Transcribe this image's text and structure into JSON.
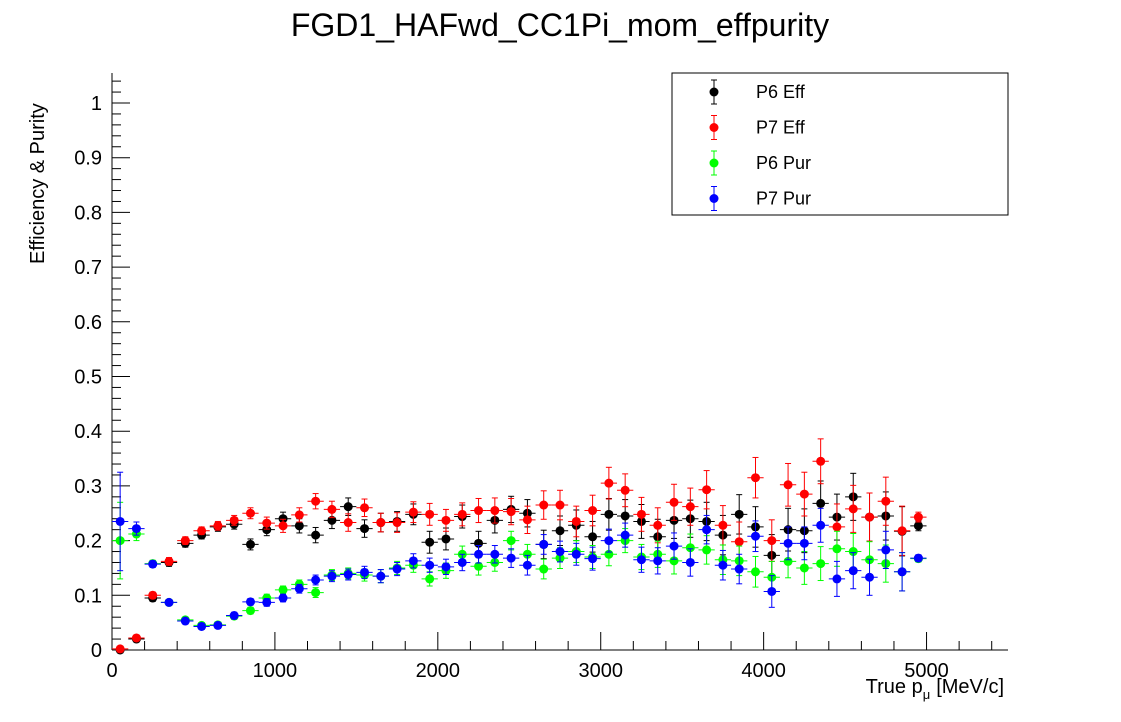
{
  "chart_data": {
    "type": "scatter",
    "title": "FGD1_HAFwd_CC1Pi_mom_effpurity",
    "xlabel": "True p",
    "xlabel_sub": "μ",
    "xlabel_unit": "[MeV/c]",
    "ylabel": "Efficiency & Purity",
    "xlim": [
      0,
      5500
    ],
    "ylim": [
      0,
      1.05
    ],
    "x_ticks": [
      0,
      1000,
      2000,
      3000,
      4000,
      5000
    ],
    "x_tick_labels": [
      "0",
      "1000",
      "2000",
      "3000",
      "4000",
      "5000"
    ],
    "y_ticks": [
      0,
      0.1,
      0.2,
      0.3,
      0.4,
      0.5,
      0.6,
      0.7,
      0.8,
      0.9,
      1
    ],
    "y_tick_labels": [
      "0",
      "0.1",
      "0.2",
      "0.3",
      "0.4",
      "0.5",
      "0.6",
      "0.7",
      "0.8",
      "0.9",
      "1"
    ],
    "x": [
      50,
      150,
      250,
      350,
      450,
      550,
      650,
      750,
      850,
      950,
      1050,
      1150,
      1250,
      1350,
      1450,
      1550,
      1650,
      1750,
      1850,
      1950,
      2050,
      2150,
      2250,
      2350,
      2450,
      2550,
      2650,
      2750,
      2850,
      2950,
      3050,
      3150,
      3250,
      3350,
      3450,
      3550,
      3650,
      3750,
      3850,
      3950,
      4050,
      4150,
      4250,
      4350,
      4450,
      4550,
      4650,
      4750,
      4850,
      4950
    ],
    "x_error": 50,
    "legend_position": "top-right",
    "grid": false,
    "series": [
      {
        "name": "P6 Eff",
        "color": "#000000",
        "values": [
          0.0,
          0.02,
          0.095,
          0.16,
          0.195,
          0.21,
          0.225,
          0.23,
          0.193,
          0.22,
          0.24,
          0.227,
          0.21,
          0.237,
          0.262,
          0.222,
          0.233,
          0.235,
          0.248,
          0.197,
          0.203,
          0.244,
          0.195,
          0.237,
          0.257,
          0.25,
          0.193,
          0.218,
          0.228,
          0.207,
          0.248,
          0.245,
          0.235,
          0.207,
          0.237,
          0.24,
          0.235,
          0.21,
          0.248,
          0.225,
          0.173,
          0.22,
          0.218,
          0.268,
          0.243,
          0.28,
          0.243,
          0.245,
          0.217,
          0.227
        ],
        "errors": [
          0.003,
          0.005,
          0.006,
          0.007,
          0.007,
          0.007,
          0.008,
          0.009,
          0.01,
          0.011,
          0.012,
          0.013,
          0.014,
          0.015,
          0.016,
          0.016,
          0.017,
          0.018,
          0.019,
          0.02,
          0.02,
          0.021,
          0.022,
          0.023,
          0.024,
          0.025,
          0.026,
          0.027,
          0.028,
          0.028,
          0.029,
          0.03,
          0.031,
          0.032,
          0.033,
          0.034,
          0.035,
          0.036,
          0.036,
          0.037,
          0.038,
          0.039,
          0.04,
          0.041,
          0.042,
          0.043,
          0.044,
          0.044,
          0.045,
          0.009
        ]
      },
      {
        "name": "P7 Eff",
        "color": "#ff0000",
        "values": [
          0.002,
          0.022,
          0.1,
          0.162,
          0.2,
          0.218,
          0.227,
          0.237,
          0.25,
          0.232,
          0.227,
          0.247,
          0.272,
          0.257,
          0.233,
          0.26,
          0.233,
          0.233,
          0.252,
          0.248,
          0.237,
          0.248,
          0.255,
          0.255,
          0.253,
          0.238,
          0.265,
          0.265,
          0.235,
          0.255,
          0.305,
          0.292,
          0.248,
          0.228,
          0.27,
          0.262,
          0.293,
          0.228,
          0.198,
          0.315,
          0.2,
          0.302,
          0.285,
          0.345,
          0.225,
          0.258,
          0.243,
          0.272,
          0.218,
          0.243
        ],
        "errors": [
          0.003,
          0.005,
          0.006,
          0.007,
          0.007,
          0.007,
          0.008,
          0.009,
          0.01,
          0.011,
          0.012,
          0.013,
          0.014,
          0.015,
          0.016,
          0.016,
          0.017,
          0.018,
          0.019,
          0.02,
          0.02,
          0.021,
          0.022,
          0.023,
          0.024,
          0.025,
          0.026,
          0.027,
          0.028,
          0.028,
          0.029,
          0.03,
          0.031,
          0.032,
          0.033,
          0.034,
          0.035,
          0.036,
          0.036,
          0.037,
          0.038,
          0.039,
          0.04,
          0.041,
          0.042,
          0.043,
          0.044,
          0.044,
          0.045,
          0.009
        ]
      },
      {
        "name": "P6 Pur",
        "color": "#00ff00",
        "values": [
          0.2,
          0.212,
          0.158,
          0.087,
          0.055,
          0.045,
          0.046,
          0.062,
          0.072,
          0.095,
          0.11,
          0.12,
          0.105,
          0.137,
          0.14,
          0.137,
          0.135,
          0.15,
          0.155,
          0.13,
          0.145,
          0.175,
          0.153,
          0.16,
          0.2,
          0.175,
          0.148,
          0.168,
          0.18,
          0.17,
          0.175,
          0.2,
          0.17,
          0.175,
          0.163,
          0.187,
          0.183,
          0.165,
          0.163,
          0.143,
          0.133,
          0.162,
          0.15,
          0.158,
          0.185,
          0.18,
          0.165,
          0.158,
          0.143,
          0.167
        ],
        "errors": [
          0.07,
          0.012,
          0.006,
          0.005,
          0.005,
          0.005,
          0.005,
          0.006,
          0.006,
          0.007,
          0.007,
          0.008,
          0.009,
          0.01,
          0.01,
          0.011,
          0.012,
          0.012,
          0.013,
          0.013,
          0.014,
          0.015,
          0.016,
          0.016,
          0.017,
          0.018,
          0.018,
          0.019,
          0.02,
          0.021,
          0.021,
          0.022,
          0.023,
          0.024,
          0.024,
          0.025,
          0.026,
          0.027,
          0.027,
          0.028,
          0.029,
          0.03,
          0.03,
          0.031,
          0.032,
          0.033,
          0.033,
          0.034,
          0.035,
          0.006
        ]
      },
      {
        "name": "P7 Pur",
        "color": "#0000ff",
        "values": [
          0.235,
          0.222,
          0.157,
          0.087,
          0.053,
          0.043,
          0.045,
          0.063,
          0.088,
          0.087,
          0.095,
          0.112,
          0.128,
          0.135,
          0.138,
          0.142,
          0.135,
          0.148,
          0.163,
          0.155,
          0.152,
          0.16,
          0.175,
          0.175,
          0.168,
          0.155,
          0.193,
          0.18,
          0.175,
          0.167,
          0.2,
          0.21,
          0.165,
          0.163,
          0.19,
          0.16,
          0.22,
          0.155,
          0.148,
          0.208,
          0.107,
          0.195,
          0.195,
          0.228,
          0.13,
          0.145,
          0.133,
          0.183,
          0.143,
          0.168
        ],
        "errors": [
          0.09,
          0.012,
          0.006,
          0.005,
          0.005,
          0.005,
          0.005,
          0.006,
          0.006,
          0.007,
          0.007,
          0.008,
          0.009,
          0.01,
          0.01,
          0.011,
          0.012,
          0.012,
          0.013,
          0.013,
          0.014,
          0.015,
          0.016,
          0.016,
          0.017,
          0.018,
          0.018,
          0.019,
          0.02,
          0.021,
          0.021,
          0.022,
          0.023,
          0.024,
          0.024,
          0.025,
          0.026,
          0.027,
          0.027,
          0.028,
          0.029,
          0.03,
          0.03,
          0.031,
          0.032,
          0.033,
          0.033,
          0.034,
          0.035,
          0.006
        ]
      }
    ]
  }
}
